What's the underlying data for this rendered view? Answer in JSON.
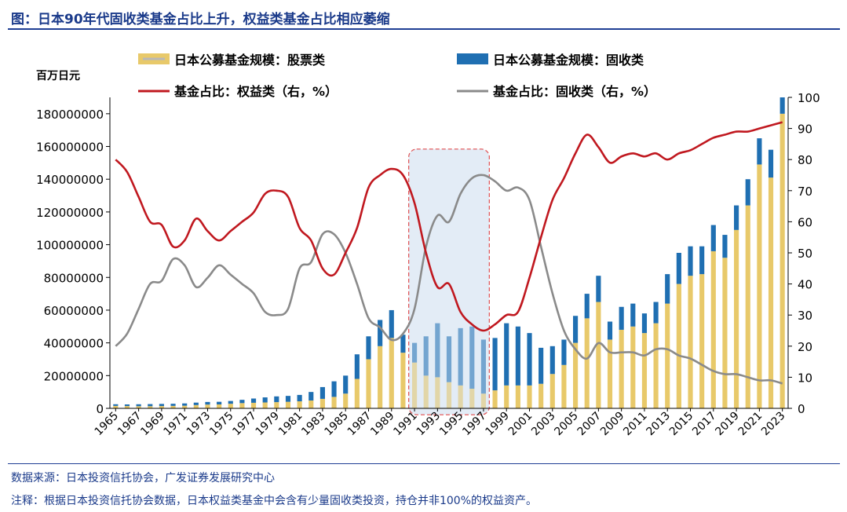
{
  "title": "图：日本90年代固收类基金占比上升，权益类基金占比相应萎缩",
  "source": "数据来源：日本投资信托协会，广发证券发展研究中心",
  "note": "注释：根据日本投资信托协会数据，日本权益类基金中会含有少量固收类投资，持仓并非100%的权益资产。",
  "chart_data": {
    "type": "bar",
    "left_unit": "百万日元",
    "ylim_left": [
      0,
      190000000
    ],
    "ylim_right": [
      0,
      100
    ],
    "left_ticks": [
      0,
      20000000,
      40000000,
      60000000,
      80000000,
      100000000,
      120000000,
      140000000,
      160000000,
      180000000
    ],
    "right_ticks": [
      0,
      10,
      20,
      30,
      40,
      50,
      60,
      70,
      80,
      90,
      100
    ],
    "x_tick_labels": [
      "1965",
      "1967",
      "1969",
      "1971",
      "1973",
      "1975",
      "1977",
      "1979",
      "1981",
      "1983",
      "1985",
      "1987",
      "1989",
      "1991",
      "1993",
      "1995",
      "1997",
      "1999",
      "2001",
      "2003",
      "2005",
      "2007",
      "2009",
      "2011",
      "2013",
      "2015",
      "2017",
      "2019",
      "2021",
      "2023"
    ],
    "x": [
      1965,
      1966,
      1967,
      1968,
      1969,
      1970,
      1971,
      1972,
      1973,
      1974,
      1975,
      1976,
      1977,
      1978,
      1979,
      1980,
      1981,
      1982,
      1983,
      1984,
      1985,
      1986,
      1987,
      1988,
      1989,
      1990,
      1991,
      1992,
      1993,
      1994,
      1995,
      1996,
      1997,
      1998,
      1999,
      2000,
      2001,
      2002,
      2003,
      2004,
      2005,
      2006,
      2007,
      2008,
      2009,
      2010,
      2011,
      2012,
      2013,
      2014,
      2015,
      2016,
      2017,
      2018,
      2019,
      2020,
      2021,
      2022,
      2023
    ],
    "highlight_range": [
      1990.5,
      1997.5
    ],
    "series": [
      {
        "name": "日本公募基金规模：股票类",
        "kind": "bar",
        "color": "#e8c96a",
        "axis": "left",
        "values": [
          1500000,
          1400000,
          1300000,
          1300000,
          1400000,
          1500000,
          1600000,
          2000000,
          2300000,
          2400000,
          2800000,
          3200000,
          3400000,
          3600000,
          3800000,
          4000000,
          4300000,
          4800000,
          5800000,
          7000000,
          9000000,
          18000000,
          30000000,
          38000000,
          43000000,
          34000000,
          28000000,
          20000000,
          19000000,
          16000000,
          14000000,
          12000000,
          9000000,
          11000000,
          14000000,
          14000000,
          14000000,
          15000000,
          21000000,
          26500000,
          40000000,
          55000000,
          65000000,
          42000000,
          48000000,
          50000000,
          46000000,
          52000000,
          64000000,
          76000000,
          81000000,
          82000000,
          96000000,
          92000000,
          109000000,
          124000000,
          149000000,
          141000000,
          180000000
        ]
      },
      {
        "name": "日本公募基金规模：固收类",
        "kind": "bar",
        "color": "#1f6fb2",
        "axis": "left",
        "values": [
          1000000,
          1000000,
          1200000,
          1300000,
          1300000,
          1300000,
          1400000,
          1500000,
          1600000,
          1600000,
          1700000,
          2000000,
          2600000,
          3100000,
          3500000,
          3600000,
          3900000,
          5200000,
          7200000,
          9500000,
          11000000,
          15000000,
          14000000,
          16000000,
          17000000,
          11000000,
          12000000,
          24000000,
          33000000,
          28000000,
          35000000,
          38000000,
          33000000,
          32000000,
          38000000,
          36000000,
          32000000,
          22000000,
          17000000,
          15500000,
          16500000,
          15000000,
          16000000,
          11000000,
          14000000,
          14000000,
          12000000,
          13000000,
          18000000,
          19000000,
          18000000,
          17000000,
          16000000,
          14000000,
          15000000,
          16000000,
          16000000,
          17000000,
          10000000
        ]
      },
      {
        "name": "基金占比：权益类（右，%）",
        "kind": "line",
        "color": "#c0181f",
        "axis": "right",
        "values": [
          80,
          76,
          68,
          60,
          59,
          52,
          54,
          61,
          57,
          54,
          57,
          60,
          63,
          69,
          70,
          68,
          58,
          54,
          45,
          43,
          50,
          58,
          71,
          75,
          77,
          75,
          66,
          50,
          39,
          40,
          31,
          27,
          25,
          27,
          30,
          31,
          42,
          55,
          67,
          74,
          82,
          88,
          84,
          79,
          81,
          82,
          81,
          82,
          80,
          82,
          83,
          85,
          87,
          88,
          89,
          89,
          90,
          91,
          92
        ]
      },
      {
        "name": "基金占比：固收类（右，%）",
        "kind": "line",
        "color": "#8a8a8a",
        "axis": "right",
        "values": [
          20,
          24,
          32,
          40,
          41,
          48,
          46,
          39,
          42,
          46,
          43,
          40,
          37,
          31,
          30,
          32,
          45,
          47,
          56,
          56,
          50,
          40,
          29,
          26,
          22,
          24,
          32,
          52,
          62,
          60,
          69,
          74,
          75,
          73,
          70,
          71,
          67,
          52,
          37,
          25,
          19,
          16,
          21,
          18,
          18,
          18,
          17,
          19,
          19,
          17,
          16,
          14,
          12,
          11,
          11,
          10,
          9,
          9,
          8
        ]
      }
    ]
  }
}
